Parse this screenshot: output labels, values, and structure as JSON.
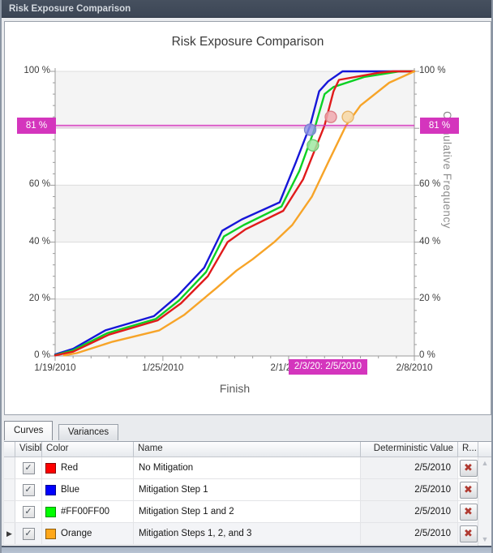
{
  "window": {
    "title": "Risk Exposure Comparison"
  },
  "chart": {
    "title": "Risk Exposure Comparison",
    "xlabel": "Finish",
    "ylabel_right": "Cumulative Frequency",
    "threshold_left_label": "81 %",
    "threshold_right_label": "81 %",
    "crosshair_bottom_label": "2/3/20: 2/5/2010"
  },
  "chart_data": {
    "type": "line",
    "title": "Risk Exposure Comparison",
    "xlabel": "Finish",
    "ylabel": "Cumulative Frequency",
    "x_unit": "days after 1/19/2010",
    "xlim": [
      0,
      20
    ],
    "ylim": [
      0,
      100
    ],
    "x_tick_days": [
      0,
      6,
      13,
      20
    ],
    "x_tick_labels": [
      "1/19/2010",
      "1/25/2010",
      "2/1/2010",
      "2/8/2010"
    ],
    "y_tick_values": [
      0,
      20,
      40,
      60,
      100
    ],
    "y_tick_labels": [
      "0 %",
      "20 %",
      "40 %",
      "60 %",
      "100 %"
    ],
    "grid_values": [
      20,
      40,
      60,
      80,
      100
    ],
    "band_fill": "#f4f4f4",
    "reference_line": {
      "value": 81,
      "color": "#d435bd",
      "label": "81 %"
    },
    "series": [
      {
        "name": "Mitigation Step 1",
        "color": "#1616d8",
        "points": [
          [
            0,
            0.5
          ],
          [
            1,
            2.5
          ],
          [
            2.8,
            9
          ],
          [
            5.5,
            14
          ],
          [
            6.8,
            21
          ],
          [
            8.3,
            31
          ],
          [
            9.3,
            44
          ],
          [
            10.4,
            48
          ],
          [
            12.5,
            54
          ],
          [
            13.4,
            68
          ],
          [
            14.2,
            81
          ],
          [
            14.7,
            93
          ],
          [
            15.2,
            96.5
          ],
          [
            16,
            100
          ],
          [
            20,
            100
          ]
        ]
      },
      {
        "name": "Mitigation Step 1 and 2",
        "color": "#0bd123",
        "points": [
          [
            0,
            0.3
          ],
          [
            1,
            2
          ],
          [
            2.9,
            8
          ],
          [
            5.6,
            13
          ],
          [
            6.9,
            19.5
          ],
          [
            8.4,
            29.5
          ],
          [
            9.4,
            42
          ],
          [
            10.5,
            46
          ],
          [
            12.6,
            52.5
          ],
          [
            13.6,
            65
          ],
          [
            14.4,
            79
          ],
          [
            15,
            92
          ],
          [
            15.5,
            94.5
          ],
          [
            17.2,
            98
          ],
          [
            19.2,
            100
          ],
          [
            20,
            100
          ]
        ]
      },
      {
        "name": "No Mitigation",
        "color": "#e01b1b",
        "points": [
          [
            0,
            0.2
          ],
          [
            1,
            1.5
          ],
          [
            3,
            7.5
          ],
          [
            5.7,
            12.5
          ],
          [
            7,
            18.5
          ],
          [
            8.5,
            28
          ],
          [
            9.6,
            40
          ],
          [
            10.6,
            44.5
          ],
          [
            12.7,
            51
          ],
          [
            13.8,
            62
          ],
          [
            15,
            81
          ],
          [
            15.5,
            93
          ],
          [
            15.8,
            97
          ],
          [
            18,
            99.5
          ],
          [
            18.8,
            100
          ],
          [
            20,
            100
          ]
        ]
      },
      {
        "name": "Mitigation Steps 1, 2, and 3",
        "color": "#f7a428",
        "points": [
          [
            0.5,
            0.2
          ],
          [
            1.2,
            1
          ],
          [
            3.2,
            5
          ],
          [
            5.8,
            9
          ],
          [
            7.2,
            14.5
          ],
          [
            9,
            24
          ],
          [
            10.1,
            30
          ],
          [
            11,
            34
          ],
          [
            12.2,
            40
          ],
          [
            13.2,
            46
          ],
          [
            14.3,
            56
          ],
          [
            15.2,
            68
          ],
          [
            16.2,
            81
          ],
          [
            17,
            88
          ],
          [
            18.6,
            96
          ],
          [
            20,
            100
          ]
        ]
      }
    ],
    "markers": [
      {
        "series": "Mitigation Step 1",
        "day": 14.2,
        "pct": 79.5,
        "fill": "rgba(140,150,230,0.8)",
        "stroke": "#7b84d0"
      },
      {
        "series": "Mitigation Step 1 and 2",
        "day": 14.35,
        "pct": 74.0,
        "fill": "rgba(160,232,162,0.85)",
        "stroke": "#6fcb74"
      },
      {
        "series": "No Mitigation",
        "day": 15.35,
        "pct": 84.0,
        "fill": "rgba(240,168,174,0.85)",
        "stroke": "#dd8089"
      },
      {
        "series": "Mitigation Steps 1, 2, and 3",
        "day": 16.3,
        "pct": 84.0,
        "fill": "rgba(247,217,168,0.9)",
        "stroke": "#e6b368"
      }
    ],
    "legend": "none (series listed in Curves table)"
  },
  "tabs": [
    {
      "label": "Curves",
      "active": true
    },
    {
      "label": "Variances",
      "active": false
    }
  ],
  "table": {
    "headers": {
      "visible": "Visible",
      "color": "Color",
      "name": "Name",
      "deterministic": "Deterministic Value",
      "remove": "R..."
    },
    "rows": [
      {
        "visible": true,
        "swatch": "#ff0000",
        "color_name": "Red",
        "name": "No Mitigation",
        "deterministic": "2/5/2010",
        "selected": false
      },
      {
        "visible": true,
        "swatch": "#0000ff",
        "color_name": "Blue",
        "name": "Mitigation Step 1",
        "deterministic": "2/5/2010",
        "selected": false
      },
      {
        "visible": true,
        "swatch": "#00ff00",
        "color_name": "#FF00FF00",
        "name": "Mitigation Step 1 and 2",
        "deterministic": "2/5/2010",
        "selected": false
      },
      {
        "visible": true,
        "swatch": "#ffa719",
        "color_name": "Orange",
        "name": "Mitigation Steps 1, 2, and 3",
        "deterministic": "2/5/2010",
        "selected": true
      }
    ]
  },
  "icons": {
    "check": "✓",
    "delete": "✖",
    "row_selector": "▶",
    "scroll_up": "▲",
    "scroll_down": "▼"
  }
}
